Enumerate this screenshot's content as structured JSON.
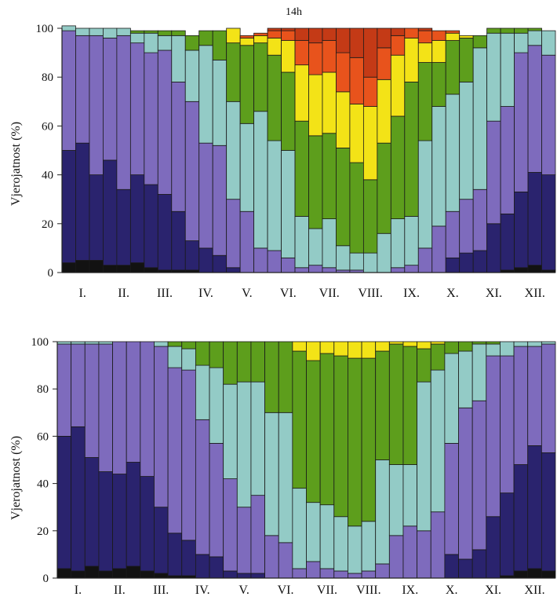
{
  "colors": [
    "#121212",
    "#2a236e",
    "#7e6bbd",
    "#93cbc6",
    "#5d9e1c",
    "#f3e317",
    "#e8531c",
    "#c43a16"
  ],
  "chart_data": [
    {
      "type": "bar",
      "stacked": true,
      "title": "14h",
      "ylabel": "Vjerojatnost  (%)",
      "ylim": [
        0,
        100
      ],
      "yticks": [
        0,
        20,
        40,
        60,
        80,
        100
      ],
      "month_labels": [
        "I.",
        "II.",
        "III.",
        "IV.",
        "V.",
        "VI.",
        "VII.",
        "VIII.",
        "IX.",
        "X.",
        "XI.",
        "XII."
      ],
      "categories": [
        "1",
        "2",
        "3",
        "4",
        "5",
        "6",
        "7",
        "8",
        "9",
        "10",
        "11",
        "12",
        "13",
        "14",
        "15",
        "16",
        "17",
        "18",
        "19",
        "20",
        "21",
        "22",
        "23",
        "24",
        "25",
        "26",
        "27",
        "28",
        "29",
        "30",
        "31",
        "32",
        "33",
        "34",
        "35",
        "36"
      ],
      "series": [
        {
          "values": [
            4,
            5,
            5,
            3,
            3,
            4,
            2,
            1,
            1,
            1,
            0,
            0,
            0,
            0,
            0,
            0,
            0,
            0,
            0,
            0,
            0,
            0,
            0,
            0,
            0,
            0,
            0,
            0,
            0,
            0,
            0,
            0,
            1,
            2,
            3,
            1
          ]
        },
        {
          "values": [
            46,
            48,
            35,
            43,
            31,
            36,
            34,
            31,
            24,
            12,
            10,
            7,
            2,
            0,
            0,
            0,
            0,
            0,
            0,
            0,
            0,
            0,
            0,
            0,
            0,
            0,
            0,
            0,
            6,
            8,
            9,
            20,
            23,
            31,
            38,
            39
          ]
        },
        {
          "values": [
            49,
            44,
            57,
            50,
            63,
            54,
            54,
            59,
            53,
            57,
            43,
            45,
            28,
            25,
            10,
            9,
            6,
            2,
            3,
            2,
            1,
            1,
            0,
            0,
            2,
            3,
            10,
            19,
            19,
            22,
            25,
            42,
            44,
            57,
            52,
            49
          ]
        },
        {
          "values": [
            2,
            3,
            3,
            4,
            3,
            4,
            8,
            6,
            19,
            21,
            40,
            35,
            40,
            36,
            56,
            45,
            44,
            21,
            15,
            20,
            10,
            7,
            8,
            16,
            20,
            20,
            44,
            49,
            48,
            48,
            58,
            36,
            30,
            8,
            6,
            10
          ]
        },
        {
          "values": [
            0,
            0,
            0,
            0,
            0,
            1,
            1,
            2,
            2,
            6,
            6,
            12,
            24,
            32,
            28,
            35,
            32,
            39,
            38,
            35,
            40,
            37,
            30,
            37,
            42,
            55,
            32,
            18,
            22,
            18,
            5,
            2,
            2,
            2,
            1,
            0
          ]
        },
        {
          "values": [
            0,
            0,
            0,
            0,
            0,
            0,
            0,
            0,
            0,
            0,
            0,
            0,
            6,
            3,
            3,
            7,
            13,
            23,
            25,
            25,
            23,
            24,
            30,
            26,
            25,
            18,
            8,
            9,
            3,
            1,
            0,
            0,
            0,
            0,
            0,
            0
          ]
        },
        {
          "values": [
            0,
            0,
            0,
            0,
            0,
            0,
            0,
            0,
            0,
            0,
            0,
            0,
            0,
            1,
            1,
            3,
            4,
            10,
            13,
            13,
            16,
            19,
            12,
            13,
            8,
            4,
            5,
            4,
            1,
            0,
            0,
            0,
            0,
            0,
            0,
            0
          ]
        },
        {
          "values": [
            0,
            0,
            0,
            0,
            0,
            0,
            0,
            0,
            0,
            0,
            0,
            0,
            0,
            0,
            0,
            1,
            1,
            5,
            6,
            5,
            10,
            12,
            20,
            8,
            3,
            0,
            1,
            0,
            0,
            0,
            0,
            0,
            0,
            0,
            0,
            0
          ]
        }
      ]
    },
    {
      "type": "bar",
      "stacked": true,
      "title": "",
      "ylabel": "Vjerojatnost  (%)",
      "ylim": [
        0,
        100
      ],
      "yticks": [
        0,
        20,
        40,
        60,
        80,
        100
      ],
      "month_labels": [
        "I.",
        "II.",
        "III.",
        "IV.",
        "V.",
        "VI.",
        "VII.",
        "VIII.",
        "IX.",
        "X.",
        "XI.",
        "XII."
      ],
      "categories": [
        "1",
        "2",
        "3",
        "4",
        "5",
        "6",
        "7",
        "8",
        "9",
        "10",
        "11",
        "12",
        "13",
        "14",
        "15",
        "16",
        "17",
        "18",
        "19",
        "20",
        "21",
        "22",
        "23",
        "24",
        "25",
        "26",
        "27",
        "28",
        "29",
        "30",
        "31",
        "32",
        "33",
        "34",
        "35",
        "36"
      ],
      "series": [
        {
          "values": [
            4,
            3,
            5,
            3,
            4,
            5,
            3,
            2,
            1,
            1,
            0,
            0,
            0,
            0,
            0,
            0,
            0,
            0,
            0,
            0,
            0,
            0,
            0,
            0,
            0,
            0,
            0,
            0,
            0,
            0,
            0,
            0,
            1,
            3,
            4,
            3
          ]
        },
        {
          "values": [
            56,
            61,
            46,
            42,
            40,
            44,
            40,
            28,
            18,
            15,
            10,
            9,
            3,
            2,
            2,
            0,
            0,
            0,
            0,
            0,
            0,
            0,
            0,
            0,
            0,
            0,
            0,
            0,
            10,
            8,
            12,
            26,
            35,
            45,
            52,
            50
          ]
        },
        {
          "values": [
            39,
            35,
            48,
            54,
            56,
            51,
            57,
            68,
            70,
            72,
            57,
            48,
            39,
            28,
            33,
            18,
            15,
            4,
            7,
            4,
            3,
            2,
            3,
            6,
            18,
            22,
            20,
            28,
            47,
            64,
            63,
            68,
            58,
            50,
            42,
            46
          ]
        },
        {
          "values": [
            1,
            1,
            1,
            1,
            0,
            0,
            0,
            2,
            9,
            9,
            23,
            32,
            40,
            53,
            48,
            52,
            55,
            34,
            25,
            27,
            23,
            20,
            21,
            44,
            30,
            26,
            63,
            60,
            38,
            24,
            24,
            5,
            6,
            2,
            2,
            1
          ]
        },
        {
          "values": [
            0,
            0,
            0,
            0,
            0,
            0,
            0,
            0,
            2,
            3,
            10,
            11,
            18,
            17,
            17,
            30,
            30,
            58,
            60,
            64,
            68,
            71,
            69,
            46,
            51,
            50,
            14,
            11,
            5,
            4,
            1,
            1,
            0,
            0,
            0,
            0
          ]
        },
        {
          "values": [
            0,
            0,
            0,
            0,
            0,
            0,
            0,
            0,
            0,
            0,
            0,
            0,
            0,
            0,
            0,
            0,
            0,
            4,
            8,
            5,
            6,
            7,
            7,
            4,
            1,
            2,
            3,
            1,
            0,
            0,
            0,
            0,
            0,
            0,
            0,
            0
          ]
        },
        {
          "values": [
            0,
            0,
            0,
            0,
            0,
            0,
            0,
            0,
            0,
            0,
            0,
            0,
            0,
            0,
            0,
            0,
            0,
            0,
            0,
            0,
            0,
            0,
            0,
            0,
            0,
            0,
            0,
            0,
            0,
            0,
            0,
            0,
            0,
            0,
            0,
            0
          ]
        },
        {
          "values": [
            0,
            0,
            0,
            0,
            0,
            0,
            0,
            0,
            0,
            0,
            0,
            0,
            0,
            0,
            0,
            0,
            0,
            0,
            0,
            0,
            0,
            0,
            0,
            0,
            0,
            0,
            0,
            0,
            0,
            0,
            0,
            0,
            0,
            0,
            0,
            0
          ]
        }
      ]
    }
  ]
}
